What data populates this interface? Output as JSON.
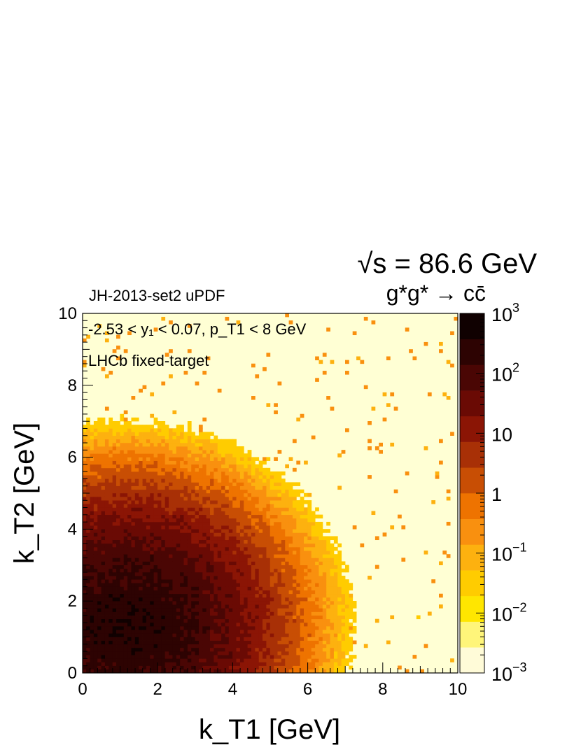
{
  "chart_data": {
    "type": "heatmap",
    "header": {
      "energy_label": "√s = 86.6 GeV",
      "process_label": "g*g* → cc̄",
      "updf_label": "JH-2013-set2 uPDF"
    },
    "annotations": [
      "-2.53 < y₁ < 0.07, p_T1 < 8 GeV",
      "LHCb fixed-target"
    ],
    "xlabel": "k_T1   [GeV]",
    "ylabel": "k_T2   [GeV]",
    "xlim": [
      0,
      10
    ],
    "ylim": [
      0,
      10
    ],
    "x_ticks": [
      "0",
      "2",
      "4",
      "6",
      "8",
      "10"
    ],
    "y_ticks": [
      "0",
      "2",
      "4",
      "6",
      "8",
      "10"
    ],
    "z_scale": "log",
    "zlim": [
      0.001,
      1000
    ],
    "z_ticks": [
      "10^-3",
      "10^-2",
      "10^-1",
      "1",
      "10",
      "10^2",
      "10^3"
    ],
    "peak": {
      "x": 1.2,
      "y": 1.3
    },
    "contour_levels": [
      0.001,
      0.01,
      0.1,
      1,
      10,
      30,
      100
    ],
    "palette": [
      "#fffbd8",
      "#fff57a",
      "#ffe600",
      "#ffcc00",
      "#fdb10f",
      "#f9900f",
      "#ee7300",
      "#c84e04",
      "#a83006",
      "#8b1505",
      "#6a0a04",
      "#4a0604",
      "#2d0302",
      "#100101"
    ],
    "background_color": "#ffffd4",
    "grid": false
  }
}
